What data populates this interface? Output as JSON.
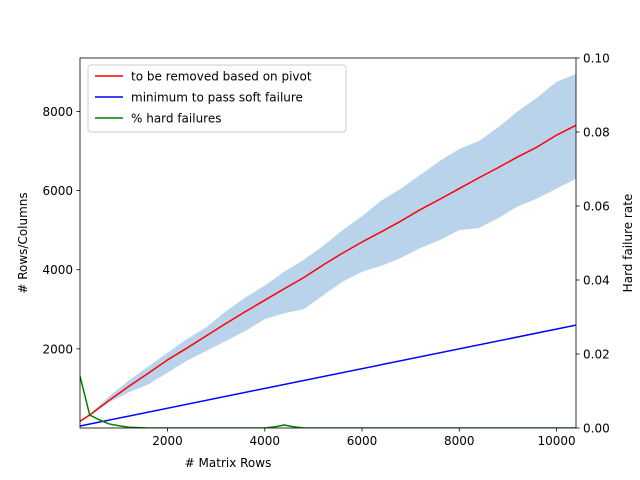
{
  "chart_data": {
    "type": "line",
    "title": "",
    "xlabel": "# Matrix Rows",
    "ylabel": "# Rows/Columns",
    "y2label": "Hard failure rate",
    "xlim": [
      200,
      10400
    ],
    "ylim": [
      0,
      9350
    ],
    "y2lim": [
      0,
      0.1
    ],
    "xticks": [
      2000,
      4000,
      6000,
      8000,
      10000
    ],
    "xtick_labels": [
      "2000",
      "4000",
      "6000",
      "8000",
      "10000"
    ],
    "yticks": [
      2000,
      4000,
      6000,
      8000
    ],
    "ytick_labels": [
      "2000",
      "4000",
      "6000",
      "8000"
    ],
    "y2ticks": [
      0.0,
      0.02,
      0.04,
      0.06,
      0.08,
      0.1
    ],
    "y2tick_labels": [
      "0.00",
      "0.02",
      "0.04",
      "0.06",
      "0.08",
      "0.10"
    ],
    "grid": false,
    "legend_position": "top-left",
    "band": {
      "color": "#b9d3ea",
      "x": [
        200,
        400,
        800,
        1200,
        1600,
        2000,
        2400,
        2800,
        3200,
        3600,
        4000,
        4400,
        4800,
        5200,
        5600,
        6000,
        6400,
        6800,
        7200,
        7600,
        8000,
        8400,
        8800,
        9200,
        9600,
        10000,
        10400
      ],
      "upper": [
        180,
        350,
        800,
        1200,
        1550,
        1900,
        2250,
        2550,
        2950,
        3300,
        3600,
        3950,
        4250,
        4600,
        5000,
        5350,
        5750,
        6050,
        6400,
        6750,
        7050,
        7250,
        7600,
        8000,
        8350,
        8750,
        8950
      ],
      "lower": [
        170,
        300,
        650,
        900,
        1100,
        1400,
        1700,
        1950,
        2200,
        2450,
        2750,
        2900,
        3000,
        3350,
        3700,
        3950,
        4100,
        4300,
        4550,
        4750,
        5000,
        5050,
        5300,
        5600,
        5800,
        6050,
        6300
      ]
    },
    "series": [
      {
        "name": "to be removed based on pivot",
        "color": "#ff0000",
        "axis": "left",
        "x": [
          200,
          400,
          800,
          1200,
          1600,
          2000,
          2400,
          2800,
          3200,
          3600,
          4000,
          4400,
          4800,
          5200,
          5600,
          6000,
          6400,
          6800,
          7200,
          7600,
          8000,
          8400,
          8800,
          9200,
          9600,
          10000,
          10400
        ],
        "values": [
          170,
          330,
          700,
          1050,
          1380,
          1720,
          2020,
          2330,
          2640,
          2940,
          3230,
          3520,
          3800,
          4120,
          4420,
          4700,
          4960,
          5230,
          5520,
          5780,
          6050,
          6320,
          6580,
          6850,
          7100,
          7400,
          7650
        ]
      },
      {
        "name": "minimum to pass soft failure",
        "color": "#0000ff",
        "axis": "left",
        "x": [
          200,
          10400
        ],
        "values": [
          50,
          2600
        ]
      },
      {
        "name": "% hard failures",
        "color": "#008000",
        "axis": "right",
        "x": [
          200,
          400,
          600,
          800,
          1000,
          1200,
          1600,
          2000,
          3000,
          4000,
          4200,
          4400,
          4600,
          4800,
          6000,
          8000,
          10400
        ],
        "values": [
          0.014,
          0.0035,
          0.0022,
          0.0011,
          0.0006,
          0.0002,
          0.0,
          0.0,
          0.0,
          0.0,
          0.0003,
          0.0008,
          0.0003,
          0.0,
          0.0,
          0.0,
          0.0
        ]
      }
    ]
  }
}
